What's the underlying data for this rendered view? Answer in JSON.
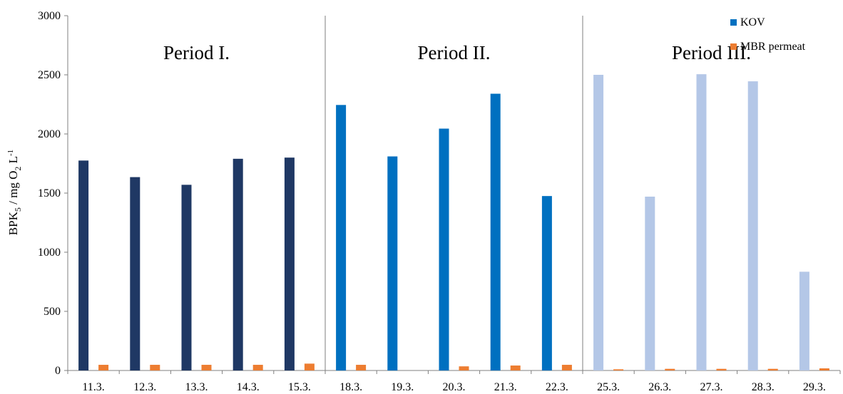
{
  "chart_data": {
    "type": "bar",
    "ylabel": {
      "main": "BPK",
      "sub1": "5",
      "mid": " / mg O",
      "sub2": "2",
      "unit": " L",
      "sup": "-1"
    },
    "ylim": [
      0,
      3000
    ],
    "yticks": [
      "0",
      "500",
      "1000",
      "1500",
      "2000",
      "2500",
      "3000"
    ],
    "ytick_values": [
      0,
      500,
      1000,
      1500,
      2000,
      2500,
      3000
    ],
    "categories": [
      "11.3.",
      "12.3.",
      "13.3.",
      "14.3.",
      "15.3.",
      "18.3.",
      "19.3.",
      "20.3.",
      "21.3.",
      "22.3.",
      "25.3.",
      "26.3.",
      "27.3.",
      "28.3.",
      "29.3."
    ],
    "series": [
      {
        "name": "KOV",
        "legend_color": "#0070C0",
        "values": [
          1775,
          1635,
          1570,
          1790,
          1800,
          2245,
          1810,
          2045,
          2340,
          1475,
          2500,
          1470,
          2505,
          2445,
          835
        ]
      },
      {
        "name": "MBR permeat",
        "color": "#ED7D31",
        "values": [
          48,
          48,
          48,
          48,
          58,
          48,
          0,
          35,
          42,
          48,
          10,
          14,
          14,
          14,
          18
        ]
      }
    ],
    "periods": [
      {
        "label": "Period I.",
        "color": "#1F3864",
        "start": 0,
        "end": 4
      },
      {
        "label": "Period II.",
        "color": "#0070C0",
        "start": 5,
        "end": 9
      },
      {
        "label": "Period III.",
        "color": "#B4C7E7",
        "start": 10,
        "end": 14
      }
    ],
    "grid": false,
    "legend": "top-right"
  }
}
